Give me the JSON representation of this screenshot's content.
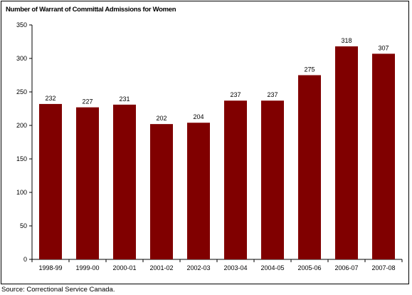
{
  "title": "Number of Warrant of Committal Admissions for Women",
  "source": "Source:  Correctional Service Canada.",
  "colors": {
    "bar": "#800000",
    "axis": "#000000",
    "background": "#ffffff"
  },
  "chart_data": {
    "type": "bar",
    "title": "Number of Warrant of Committal Admissions for Women",
    "xlabel": "",
    "ylabel": "",
    "categories": [
      "1998-99",
      "1999-00",
      "2000-01",
      "2001-02",
      "2002-03",
      "2003-04",
      "2004-05",
      "2005-06",
      "2006-07",
      "2007-08"
    ],
    "values": [
      232,
      227,
      231,
      202,
      204,
      237,
      237,
      275,
      318,
      307
    ],
    "ylim": [
      0,
      350
    ],
    "yticks": [
      0,
      50,
      100,
      150,
      200,
      250,
      300,
      350
    ],
    "grid": false,
    "legend": "none",
    "data_labels": true
  }
}
